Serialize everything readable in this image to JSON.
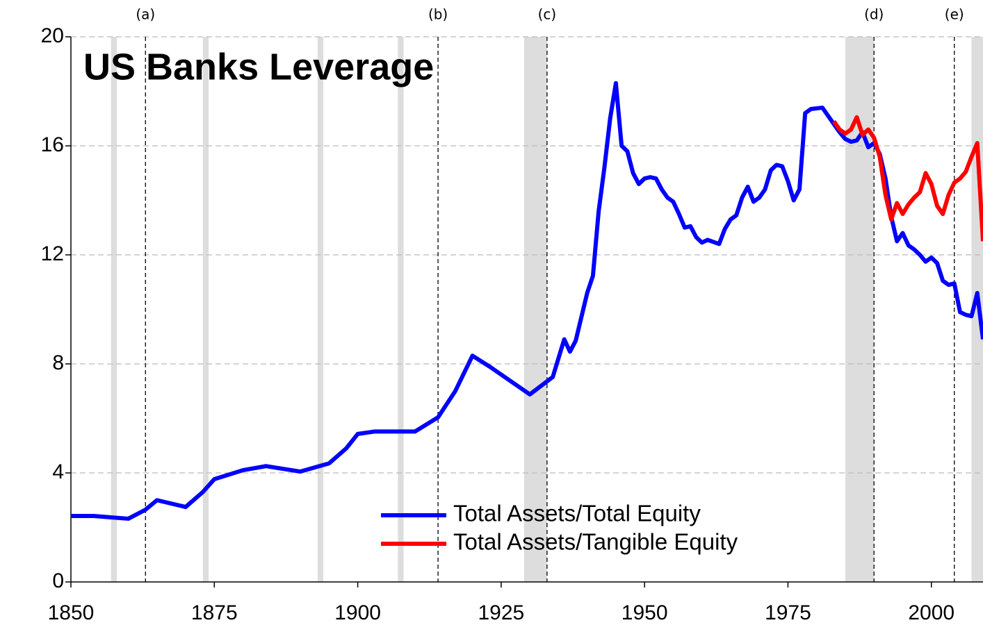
{
  "chart_data": {
    "type": "line",
    "title": "US Banks Leverage",
    "x": [
      1850,
      1854,
      1857,
      1860,
      1863,
      1865,
      1870,
      1873,
      1875,
      1880,
      1884,
      1890,
      1895,
      1898,
      1900,
      1903,
      1910,
      1914,
      1917,
      1920,
      1923,
      1930,
      1934,
      1936,
      1937,
      1938,
      1940,
      1941,
      1942,
      1943,
      1944,
      1945,
      1946,
      1947,
      1948,
      1949,
      1950,
      1951,
      1952,
      1953,
      1954,
      1955,
      1956,
      1957,
      1958,
      1959,
      1960,
      1961,
      1963,
      1964,
      1965,
      1966,
      1967,
      1968,
      1969,
      1970,
      1971,
      1972,
      1973,
      1974,
      1975,
      1976,
      1977,
      1978,
      1979,
      1981,
      1982,
      1983,
      1984,
      1985,
      1986,
      1987,
      1988,
      1989,
      1990,
      1991,
      1992,
      1993,
      1994,
      1995,
      1996,
      1997,
      1998,
      1999,
      2000,
      2001,
      2002,
      2003,
      2004,
      2005,
      2006,
      2007,
      2008,
      2009
    ],
    "series": [
      {
        "name": "Total Assets/Total Equity",
        "color": "#0000ff",
        "values": [
          2.42,
          2.42,
          2.37,
          2.32,
          2.65,
          3.0,
          2.75,
          3.3,
          3.77,
          4.1,
          4.25,
          4.05,
          4.35,
          4.9,
          5.43,
          5.52,
          5.52,
          6.04,
          7.0,
          8.3,
          7.9,
          6.88,
          7.52,
          8.9,
          8.45,
          8.85,
          10.6,
          11.23,
          13.6,
          15.2,
          17.0,
          18.3,
          16.0,
          15.8,
          15.0,
          14.6,
          14.8,
          14.85,
          14.8,
          14.4,
          14.1,
          13.95,
          13.5,
          13.0,
          13.05,
          12.65,
          12.45,
          12.55,
          12.4,
          12.95,
          13.3,
          13.45,
          14.1,
          14.5,
          13.95,
          14.1,
          14.4,
          15.1,
          15.3,
          15.25,
          14.7,
          14.0,
          14.4,
          17.2,
          17.35,
          17.4,
          17.1,
          16.8,
          16.5,
          16.25,
          16.15,
          16.2,
          16.5,
          15.95,
          16.1,
          15.7,
          14.8,
          13.4,
          12.5,
          12.8,
          12.35,
          12.2,
          12.0,
          11.75,
          11.9,
          11.7,
          11.05,
          10.9,
          10.95,
          9.9,
          9.8,
          9.75,
          10.6,
          8.9
        ]
      },
      {
        "name": "Total Assets/Tangible Equity",
        "color": "#ff0000",
        "values": [
          null,
          null,
          null,
          null,
          null,
          null,
          null,
          null,
          null,
          null,
          null,
          null,
          null,
          null,
          null,
          null,
          null,
          null,
          null,
          null,
          null,
          null,
          null,
          null,
          null,
          null,
          null,
          null,
          null,
          null,
          null,
          null,
          null,
          null,
          null,
          null,
          null,
          null,
          null,
          null,
          null,
          null,
          null,
          null,
          null,
          null,
          null,
          null,
          null,
          null,
          null,
          null,
          null,
          null,
          null,
          null,
          null,
          null,
          null,
          null,
          null,
          null,
          null,
          null,
          null,
          null,
          null,
          16.9,
          16.6,
          16.45,
          16.6,
          17.05,
          16.4,
          16.6,
          16.3,
          15.6,
          14.2,
          13.3,
          13.9,
          13.5,
          13.85,
          14.1,
          14.3,
          15.0,
          14.6,
          13.8,
          13.5,
          14.2,
          14.65,
          14.8,
          15.05,
          15.6,
          16.1,
          12.5
        ]
      }
    ],
    "xlim": [
      1850,
      2009
    ],
    "ylim": [
      0,
      20
    ],
    "xticks": [
      1850,
      1875,
      1900,
      1925,
      1950,
      1975,
      2000
    ],
    "yticks": [
      0,
      4,
      8,
      12,
      16,
      20
    ],
    "grid": true,
    "legend": "lower center",
    "shaded_periods": [
      [
        1857,
        1858
      ],
      [
        1873,
        1874
      ],
      [
        1893,
        1894
      ],
      [
        1907,
        1908
      ],
      [
        1929,
        1933
      ],
      [
        1985,
        1990
      ],
      [
        2007,
        2009
      ]
    ],
    "shade_color": "#dddddd",
    "events": [
      {
        "x": 1863,
        "label": "(a)"
      },
      {
        "x": 1914,
        "label": "(b)"
      },
      {
        "x": 1933,
        "label": "(c)"
      },
      {
        "x": 1990,
        "label": "(d)"
      },
      {
        "x": 2004,
        "label": "(e)"
      }
    ]
  }
}
